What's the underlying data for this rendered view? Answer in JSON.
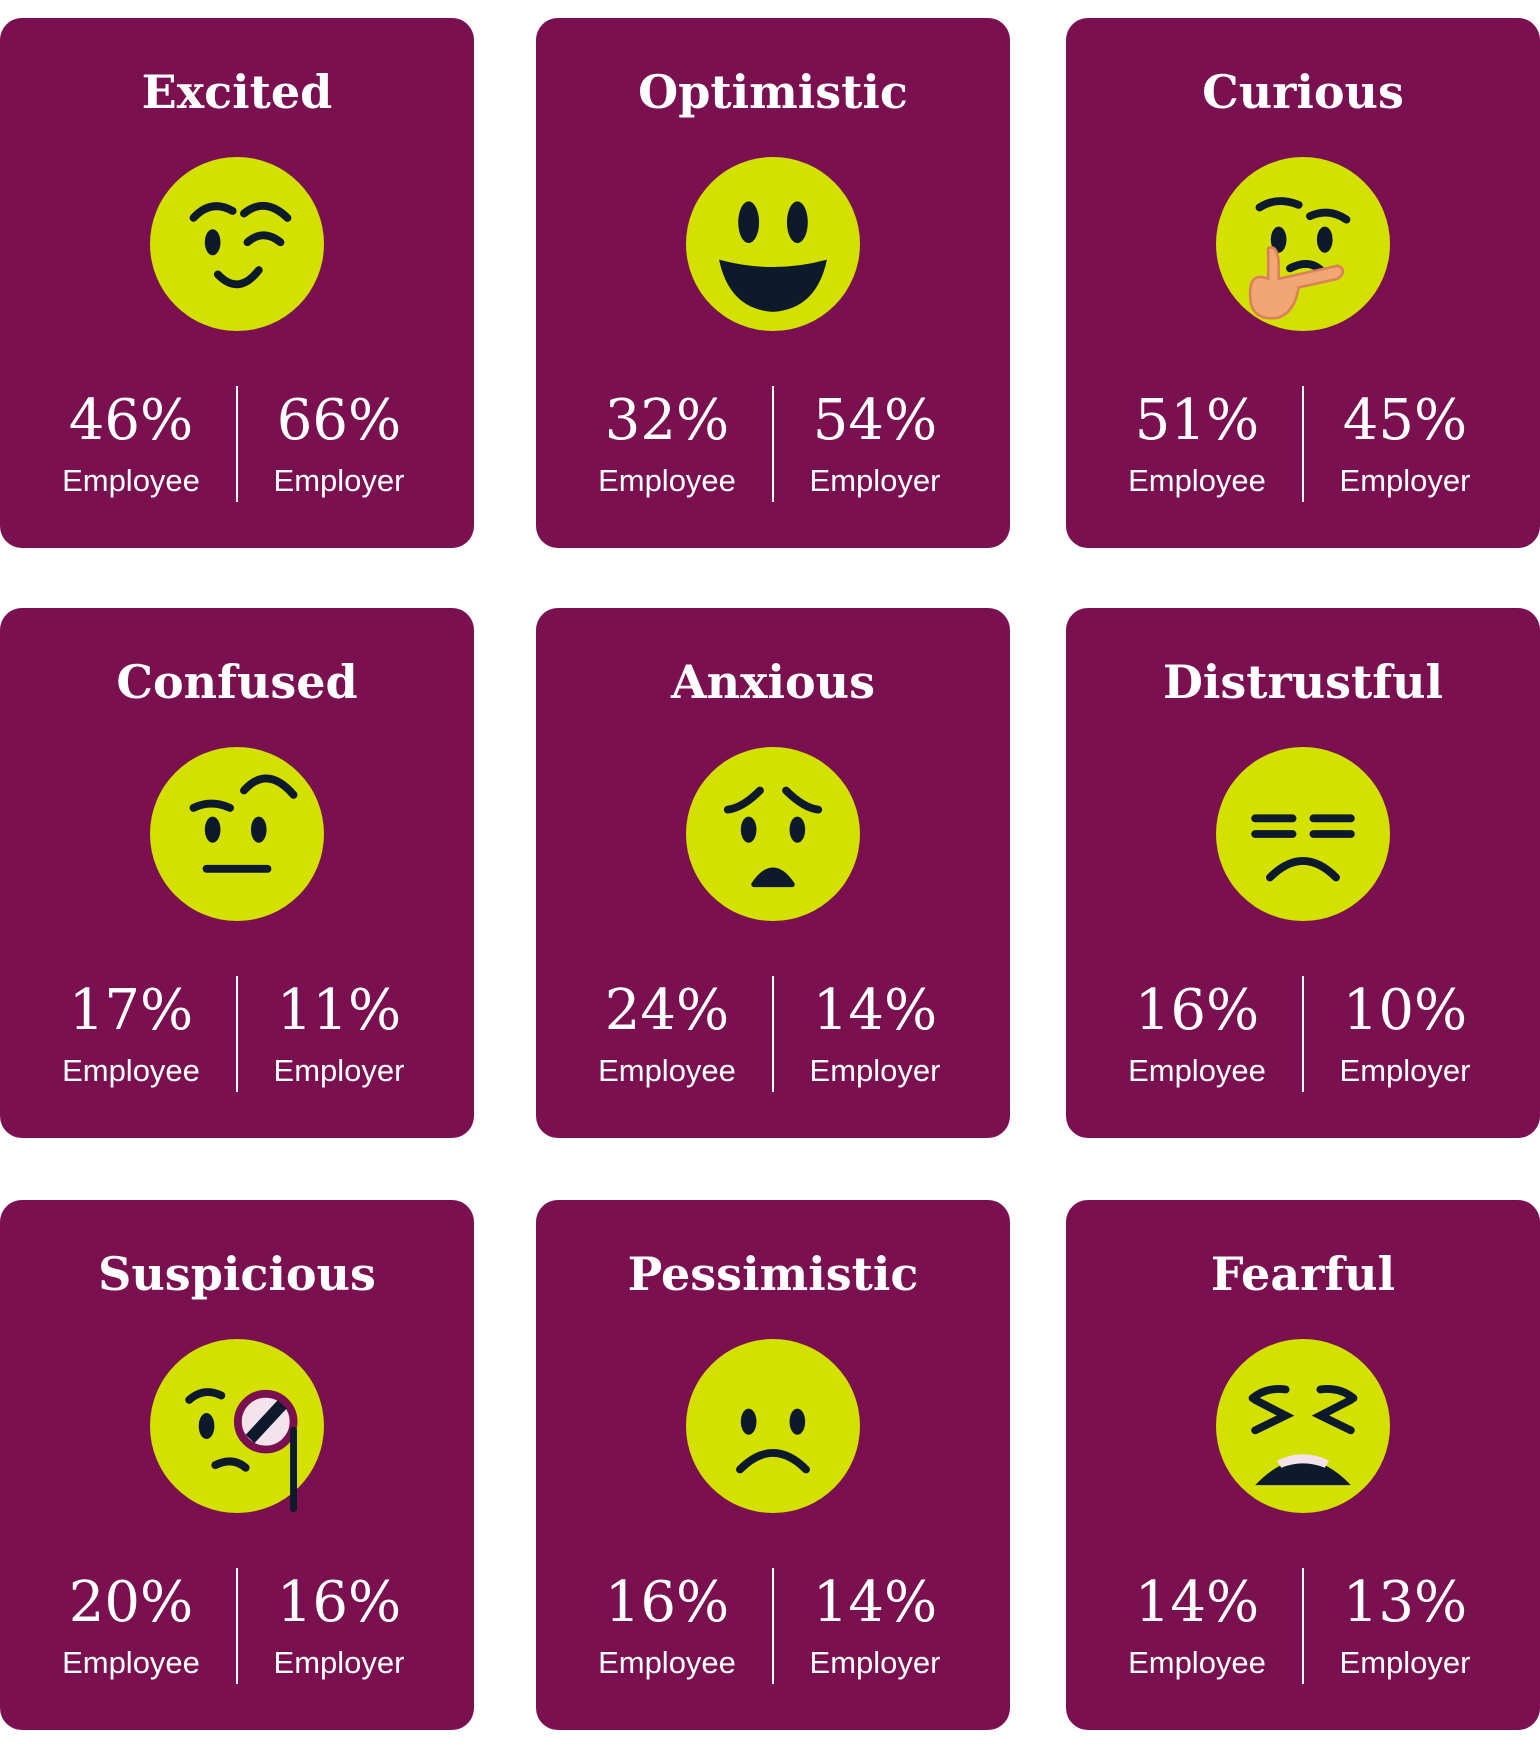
{
  "cards": [
    {
      "title": "Excited",
      "employee_value": "46%",
      "employee_label": "Employee",
      "employer_value": "66%",
      "employer_label": "Employer"
    },
    {
      "title": "Optimistic",
      "employee_value": "32%",
      "employee_label": "Employee",
      "employer_value": "54%",
      "employer_label": "Employer"
    },
    {
      "title": "Curious",
      "employee_value": "51%",
      "employee_label": "Employee",
      "employer_value": "45%",
      "employer_label": "Employer"
    },
    {
      "title": "Confused",
      "employee_value": "17%",
      "employee_label": "Employee",
      "employer_value": "11%",
      "employer_label": "Employer"
    },
    {
      "title": "Anxious",
      "employee_value": "24%",
      "employee_label": "Employee",
      "employer_value": "14%",
      "employer_label": "Employer"
    },
    {
      "title": "Distrustful",
      "employee_value": "16%",
      "employee_label": "Employee",
      "employer_value": "10%",
      "employer_label": "Employer"
    },
    {
      "title": "Suspicious",
      "employee_value": "20%",
      "employee_label": "Employee",
      "employer_value": "16%",
      "employer_label": "Employer"
    },
    {
      "title": "Pessimistic",
      "employee_value": "16%",
      "employee_label": "Employee",
      "employer_value": "14%",
      "employer_label": "Employer"
    },
    {
      "title": "Fearful",
      "employee_value": "14%",
      "employee_label": "Employee",
      "employer_value": "13%",
      "employer_label": "Employer"
    }
  ]
}
